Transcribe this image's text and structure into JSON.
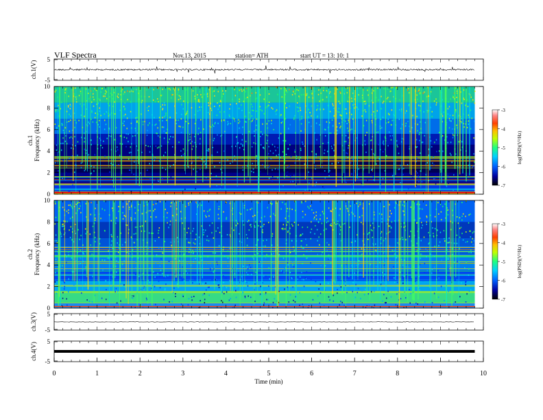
{
  "header": {
    "title": "VLF  Spectra",
    "date": "Nov.13, 2015",
    "station": "station= ATH",
    "start": "start  UT  =   13: 10: 1"
  },
  "chart_data": [
    {
      "type": "line",
      "panel": "ch1-waveform",
      "ylabel": "ch.1(V)",
      "ylim": [
        -5,
        5
      ],
      "yticks": [
        "5",
        "-5"
      ],
      "x_range_min": [
        0,
        9.8
      ],
      "trace_level": 0,
      "note_values": "noisy waveform near 0 V with spikes up to ~2 V"
    },
    {
      "type": "heatmap",
      "panel": "ch1-spectrogram",
      "ylabel": "ch.1\nFrequency (kHz)",
      "ylabel_lines": [
        "ch.1",
        "Frequency (kHz)"
      ],
      "ylim": [
        0,
        10
      ],
      "yticks": [
        "0",
        "2",
        "4",
        "6",
        "8",
        "10"
      ],
      "xlim": [
        0,
        10
      ],
      "data_xmax": 9.8,
      "colorbar": {
        "label": "log(PSD)(V²/Hz)",
        "ticks": [
          "-3",
          "-4",
          "-5",
          "-6",
          "-7"
        ],
        "range": [
          -7,
          -3
        ]
      }
    },
    {
      "type": "heatmap",
      "panel": "ch2-spectrogram",
      "ylabel_lines": [
        "ch.2",
        "Frequency (kHz)"
      ],
      "ylim": [
        0,
        10
      ],
      "yticks": [
        "0",
        "2",
        "4",
        "6",
        "8",
        "10"
      ],
      "xlim": [
        0,
        10
      ],
      "data_xmax": 9.8,
      "colorbar": {
        "label": "log(PSD)(V²/Hz)",
        "ticks": [
          "-3",
          "-4",
          "-5",
          "-6",
          "-7"
        ],
        "range": [
          -7,
          -3
        ]
      }
    },
    {
      "type": "line",
      "panel": "ch3-waveform",
      "ylabel": "ch.3(V)",
      "ylim": [
        -5,
        5
      ],
      "yticks": [
        "5",
        "-5"
      ],
      "trace_level": 0
    },
    {
      "type": "line",
      "panel": "ch4-waveform",
      "ylabel": "ch.4(V)",
      "ylim": [
        -5,
        5
      ],
      "yticks": [
        "5",
        "-5"
      ],
      "trace_level": 0
    }
  ],
  "x_axis": {
    "label": "Time  (min)",
    "ticks": [
      "0",
      "1",
      "2",
      "3",
      "4",
      "5",
      "6",
      "7",
      "8",
      "9",
      "10"
    ],
    "xlim": [
      0,
      10
    ]
  },
  "colors": {
    "colormap": [
      "#000030",
      "#0000a0",
      "#0030ff",
      "#00a0ff",
      "#00e0e0",
      "#20ff60",
      "#c0ff00",
      "#ffe000",
      "#ff8000",
      "#ff0000",
      "#ffffff"
    ],
    "axis": "#000000"
  }
}
